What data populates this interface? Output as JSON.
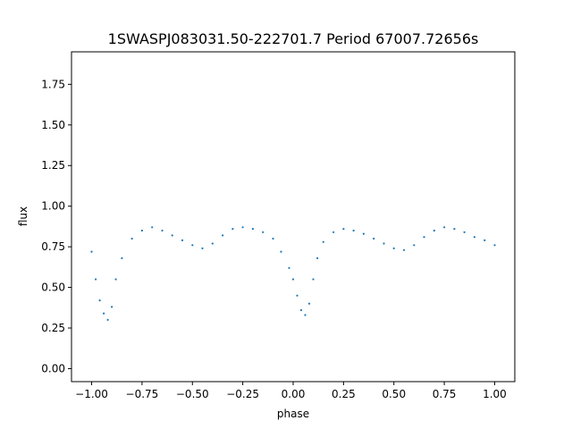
{
  "chart_data": {
    "type": "scatter",
    "title": "1SWASPJ083031.50-222701.7 Period 67007.72656s",
    "xlabel": "phase",
    "ylabel": "flux",
    "xlim": [
      -1.1,
      1.1
    ],
    "ylim": [
      -0.08,
      1.95
    ],
    "xticks": [
      -1.0,
      -0.75,
      -0.5,
      -0.25,
      0.0,
      0.25,
      0.5,
      0.75,
      1.0
    ],
    "xtick_labels": [
      "−1.00",
      "−0.75",
      "−0.50",
      "−0.25",
      "0.00",
      "0.25",
      "0.50",
      "0.75",
      "1.00"
    ],
    "yticks": [
      0.0,
      0.25,
      0.5,
      0.75,
      1.0,
      1.25,
      1.5,
      1.75
    ],
    "ytick_labels": [
      "0.00",
      "0.25",
      "0.50",
      "0.75",
      "1.00",
      "1.25",
      "1.50",
      "1.75"
    ],
    "grid": false,
    "marker_color": "#1f77b4",
    "series": [
      {
        "x": [
          -1.0,
          -0.98,
          -0.96,
          -0.94,
          -0.92,
          -0.9,
          -0.88,
          -0.85,
          -0.8,
          -0.75,
          -0.7,
          -0.65,
          -0.6,
          -0.55,
          -0.5,
          -0.45,
          -0.4,
          -0.35,
          -0.3,
          -0.25,
          -0.2,
          -0.15,
          -0.1,
          -0.06,
          -0.02,
          0.0,
          0.02,
          0.04,
          0.06,
          0.08,
          0.1,
          0.12,
          0.15,
          0.2,
          0.25,
          0.3,
          0.35,
          0.4,
          0.45,
          0.5,
          0.55,
          0.6,
          0.65,
          0.7,
          0.75,
          0.8,
          0.85,
          0.9,
          0.95,
          1.0
        ],
        "y": [
          0.72,
          0.55,
          0.42,
          0.34,
          0.3,
          0.38,
          0.55,
          0.68,
          0.8,
          0.85,
          0.87,
          0.85,
          0.82,
          0.79,
          0.76,
          0.74,
          0.77,
          0.82,
          0.86,
          0.87,
          0.86,
          0.84,
          0.8,
          0.72,
          0.62,
          0.55,
          0.45,
          0.36,
          0.33,
          0.4,
          0.55,
          0.68,
          0.78,
          0.84,
          0.86,
          0.85,
          0.83,
          0.8,
          0.77,
          0.74,
          0.73,
          0.76,
          0.81,
          0.85,
          0.87,
          0.86,
          0.84,
          0.81,
          0.79,
          0.76
        ]
      }
    ]
  }
}
